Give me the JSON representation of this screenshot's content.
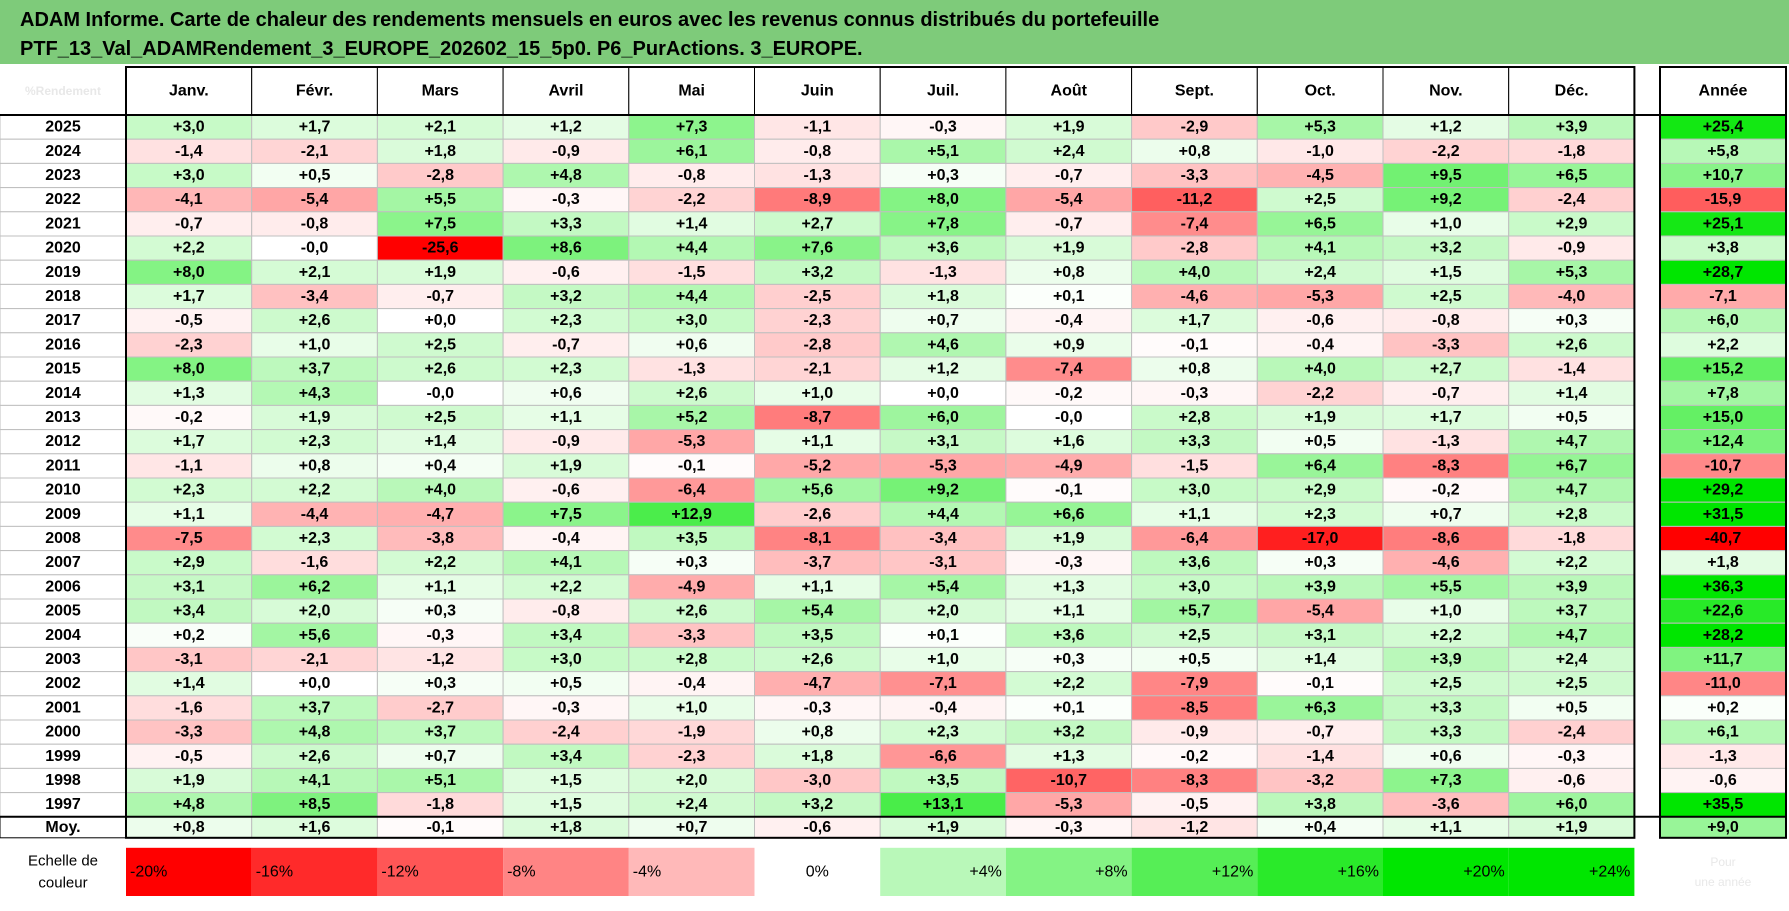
{
  "title": {
    "line1": "ADAM Informe. Carte de chaleur des rendements mensuels en euros avec les revenus connus distribués du portefeuille",
    "line2": "PTF_13_Val_ADAMRendement_3_EUROPE_202602_15_5p0. P6_PurActions. 3_EUROPE."
  },
  "chart_data": {
    "type": "heatmap",
    "corner_label": "%Rendement",
    "months": [
      "Janv.",
      "Févr.",
      "Mars",
      "Avril",
      "Mai",
      "Juin",
      "Juil.",
      "Août",
      "Sept.",
      "Oct.",
      "Nov.",
      "Déc."
    ],
    "year_header": "Année",
    "rows": [
      {
        "year": "2025",
        "values": [
          "+3,0",
          "+1,7",
          "+2,1",
          "+1,2",
          "+7,3",
          "-1,1",
          "-0,3",
          "+1,9",
          "-2,9",
          "+5,3",
          "+1,2",
          "+3,9"
        ],
        "annual": "+25,4"
      },
      {
        "year": "2024",
        "values": [
          "-1,4",
          "-2,1",
          "+1,8",
          "-0,9",
          "+6,1",
          "-0,8",
          "+5,1",
          "+2,4",
          "+0,8",
          "-1,0",
          "-2,2",
          "-1,8"
        ],
        "annual": "+5,8"
      },
      {
        "year": "2023",
        "values": [
          "+3,0",
          "+0,5",
          "-2,8",
          "+4,8",
          "-0,8",
          "-1,3",
          "+0,3",
          "-0,7",
          "-3,3",
          "-4,5",
          "+9,5",
          "+6,5"
        ],
        "annual": "+10,7"
      },
      {
        "year": "2022",
        "values": [
          "-4,1",
          "-5,4",
          "+5,5",
          "-0,3",
          "-2,2",
          "-8,9",
          "+8,0",
          "-5,4",
          "-11,2",
          "+2,5",
          "+9,2",
          "-2,4"
        ],
        "annual": "-15,9"
      },
      {
        "year": "2021",
        "values": [
          "-0,7",
          "-0,8",
          "+7,5",
          "+3,3",
          "+1,4",
          "+2,7",
          "+7,8",
          "-0,7",
          "-7,4",
          "+6,5",
          "+1,0",
          "+2,9"
        ],
        "annual": "+25,1"
      },
      {
        "year": "2020",
        "values": [
          "+2,2",
          "-0,0",
          "-25,6",
          "+8,6",
          "+4,4",
          "+7,6",
          "+3,6",
          "+1,9",
          "-2,8",
          "+4,1",
          "+3,2",
          "-0,9"
        ],
        "annual": "+3,8"
      },
      {
        "year": "2019",
        "values": [
          "+8,0",
          "+2,1",
          "+1,9",
          "-0,6",
          "-1,5",
          "+3,2",
          "-1,3",
          "+0,8",
          "+4,0",
          "+2,4",
          "+1,5",
          "+5,3"
        ],
        "annual": "+28,7"
      },
      {
        "year": "2018",
        "values": [
          "+1,7",
          "-3,4",
          "-0,7",
          "+3,2",
          "+4,4",
          "-2,5",
          "+1,8",
          "+0,1",
          "-4,6",
          "-5,3",
          "+2,5",
          "-4,0"
        ],
        "annual": "-7,1"
      },
      {
        "year": "2017",
        "values": [
          "-0,5",
          "+2,6",
          "+0,0",
          "+2,3",
          "+3,0",
          "-2,3",
          "+0,7",
          "-0,4",
          "+1,7",
          "-0,6",
          "-0,8",
          "+0,3"
        ],
        "annual": "+6,0"
      },
      {
        "year": "2016",
        "values": [
          "-2,3",
          "+1,0",
          "+2,5",
          "-0,7",
          "+0,6",
          "-2,8",
          "+4,6",
          "+0,9",
          "-0,1",
          "-0,4",
          "-3,3",
          "+2,6"
        ],
        "annual": "+2,2"
      },
      {
        "year": "2015",
        "values": [
          "+8,0",
          "+3,7",
          "+2,6",
          "+2,3",
          "-1,3",
          "-2,1",
          "+1,2",
          "-7,4",
          "+0,8",
          "+4,0",
          "+2,7",
          "-1,4"
        ],
        "annual": "+15,2"
      },
      {
        "year": "2014",
        "values": [
          "+1,3",
          "+4,3",
          "-0,0",
          "+0,6",
          "+2,6",
          "+1,0",
          "+0,0",
          "-0,2",
          "-0,3",
          "-2,2",
          "-0,7",
          "+1,4"
        ],
        "annual": "+7,8"
      },
      {
        "year": "2013",
        "values": [
          "-0,2",
          "+1,9",
          "+2,5",
          "+1,1",
          "+5,2",
          "-8,7",
          "+6,0",
          "-0,0",
          "+2,8",
          "+1,9",
          "+1,7",
          "+0,5"
        ],
        "annual": "+15,0"
      },
      {
        "year": "2012",
        "values": [
          "+1,7",
          "+2,3",
          "+1,4",
          "-0,9",
          "-5,3",
          "+1,1",
          "+3,1",
          "+1,6",
          "+3,3",
          "+0,5",
          "-1,3",
          "+4,7"
        ],
        "annual": "+12,4"
      },
      {
        "year": "2011",
        "values": [
          "-1,1",
          "+0,8",
          "+0,4",
          "+1,9",
          "-0,1",
          "-5,2",
          "-5,3",
          "-4,9",
          "-1,5",
          "+6,4",
          "-8,3",
          "+6,7"
        ],
        "annual": "-10,7"
      },
      {
        "year": "2010",
        "values": [
          "+2,3",
          "+2,2",
          "+4,0",
          "-0,6",
          "-6,4",
          "+5,6",
          "+9,2",
          "-0,1",
          "+3,0",
          "+2,9",
          "-0,2",
          "+4,7"
        ],
        "annual": "+29,2"
      },
      {
        "year": "2009",
        "values": [
          "+1,1",
          "-4,4",
          "-4,7",
          "+7,5",
          "+12,9",
          "-2,6",
          "+4,4",
          "+6,6",
          "+1,1",
          "+2,3",
          "+0,7",
          "+2,8"
        ],
        "annual": "+31,5"
      },
      {
        "year": "2008",
        "values": [
          "-7,5",
          "+2,3",
          "-3,8",
          "-0,4",
          "+3,5",
          "-8,1",
          "-3,4",
          "+1,9",
          "-6,4",
          "-17,0",
          "-8,6",
          "-1,8"
        ],
        "annual": "-40,7"
      },
      {
        "year": "2007",
        "values": [
          "+2,9",
          "-1,6",
          "+2,2",
          "+4,1",
          "+0,3",
          "-3,7",
          "-3,1",
          "-0,3",
          "+3,6",
          "+0,3",
          "-4,6",
          "+2,2"
        ],
        "annual": "+1,8"
      },
      {
        "year": "2006",
        "values": [
          "+3,1",
          "+6,2",
          "+1,1",
          "+2,2",
          "-4,9",
          "+1,1",
          "+5,4",
          "+1,3",
          "+3,0",
          "+3,9",
          "+5,5",
          "+3,9"
        ],
        "annual": "+36,3"
      },
      {
        "year": "2005",
        "values": [
          "+3,4",
          "+2,0",
          "+0,3",
          "-0,8",
          "+2,6",
          "+5,4",
          "+2,0",
          "+1,1",
          "+5,7",
          "-5,4",
          "+1,0",
          "+3,7"
        ],
        "annual": "+22,6"
      },
      {
        "year": "2004",
        "values": [
          "+0,2",
          "+5,6",
          "-0,3",
          "+3,4",
          "-3,3",
          "+3,5",
          "+0,1",
          "+3,6",
          "+2,5",
          "+3,1",
          "+2,2",
          "+4,7"
        ],
        "annual": "+28,2"
      },
      {
        "year": "2003",
        "values": [
          "-3,1",
          "-2,1",
          "-1,2",
          "+3,0",
          "+2,8",
          "+2,6",
          "+1,0",
          "+0,3",
          "+0,5",
          "+1,4",
          "+3,9",
          "+2,4"
        ],
        "annual": "+11,7"
      },
      {
        "year": "2002",
        "values": [
          "+1,4",
          "+0,0",
          "+0,3",
          "+0,5",
          "-0,4",
          "-4,7",
          "-7,1",
          "+2,2",
          "-7,9",
          "-0,1",
          "+2,5",
          "+2,5"
        ],
        "annual": "-11,0"
      },
      {
        "year": "2001",
        "values": [
          "-1,6",
          "+3,7",
          "-2,7",
          "-0,3",
          "+1,0",
          "-0,3",
          "-0,4",
          "+0,1",
          "-8,5",
          "+6,3",
          "+3,3",
          "+0,5"
        ],
        "annual": "+0,2"
      },
      {
        "year": "2000",
        "values": [
          "-3,3",
          "+4,8",
          "+3,7",
          "-2,4",
          "-1,9",
          "+0,8",
          "+2,3",
          "+3,2",
          "-0,9",
          "-0,7",
          "+3,3",
          "-2,4"
        ],
        "annual": "+6,1"
      },
      {
        "year": "1999",
        "values": [
          "-0,5",
          "+2,6",
          "+0,7",
          "+3,4",
          "-2,3",
          "+1,8",
          "-6,6",
          "+1,3",
          "-0,2",
          "-1,4",
          "+0,6",
          "-0,3"
        ],
        "annual": "-1,3"
      },
      {
        "year": "1998",
        "values": [
          "+1,9",
          "+4,1",
          "+5,1",
          "+1,5",
          "+2,0",
          "-3,0",
          "+3,5",
          "-10,7",
          "-8,3",
          "-3,2",
          "+7,3",
          "-0,6"
        ],
        "annual": "-0,6"
      },
      {
        "year": "1997",
        "values": [
          "+4,8",
          "+8,5",
          "-1,8",
          "+1,5",
          "+2,4",
          "+3,2",
          "+13,1",
          "-5,3",
          "-0,5",
          "+3,8",
          "-3,6",
          "+6,0"
        ],
        "annual": "+35,5"
      }
    ],
    "average": {
      "label": "Moy.",
      "values": [
        "+0,8",
        "+1,6",
        "-0,1",
        "+1,8",
        "+0,7",
        "-0,6",
        "+1,9",
        "-0,3",
        "-1,2",
        "+0,4",
        "+1,1",
        "+1,9"
      ],
      "annual": "+9,0"
    },
    "scale": {
      "label_line1": "Echelle de",
      "label_line2": "couleur",
      "steps": [
        {
          "label": "-20%",
          "value": -20
        },
        {
          "label": "-16%",
          "value": -16
        },
        {
          "label": "-12%",
          "value": -12
        },
        {
          "label": "-8%",
          "value": -8
        },
        {
          "label": "-4%",
          "value": -4
        },
        {
          "label": "0%",
          "value": 0
        },
        {
          "label": "+4%",
          "value": 4
        },
        {
          "label": "+8%",
          "value": 8
        },
        {
          "label": "+12%",
          "value": 12
        },
        {
          "label": "+16%",
          "value": 16
        },
        {
          "label": "+20%",
          "value": 20
        },
        {
          "label": "+24%",
          "value": 24
        }
      ],
      "annual_note_line1": "Pour",
      "annual_note_line2": "une année"
    },
    "colors": {
      "title_bg": "#7ecb7a",
      "strong_negative": "#ff0000",
      "neutral": "#ffffff",
      "strong_positive": "#00e600",
      "grid": "#bfbfbf"
    }
  }
}
